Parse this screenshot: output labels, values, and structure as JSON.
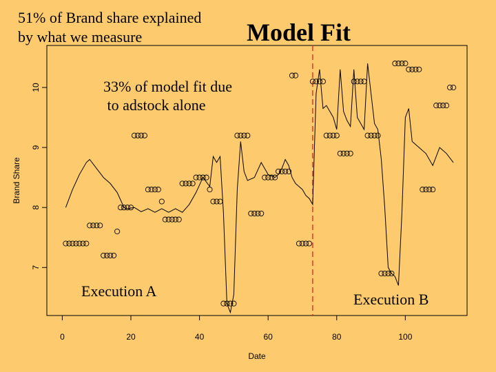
{
  "slide": {
    "headline": "51% of Brand share explained\nby what we measure",
    "title": "Model Fit",
    "note": "33% of model fit due\n to adstock alone",
    "execution_a": "Execution A",
    "execution_b": "Execution B"
  },
  "chart_data": {
    "type": "scatter",
    "title": "Model Fit",
    "xlabel": "Date",
    "ylabel": "Brand Share",
    "xlim": [
      -4.5,
      118
    ],
    "ylim": [
      6.2,
      10.7
    ],
    "xticks": [
      0,
      20,
      40,
      60,
      80,
      100
    ],
    "yticks": [
      7,
      8,
      9,
      10
    ],
    "grid": false,
    "legend": "none",
    "colors": {
      "points": "#000000",
      "fit_line": "#000000",
      "divider": "#E02020"
    },
    "divider_x": 73,
    "series": [
      {
        "type": "points",
        "x": [
          1,
          2,
          3,
          4,
          5,
          6,
          7,
          8,
          9,
          10,
          11,
          12,
          13,
          14,
          15,
          16,
          17,
          18,
          19,
          20,
          21,
          22,
          23,
          24,
          25,
          26,
          27,
          28,
          29,
          30,
          31,
          32,
          33,
          34,
          35,
          36,
          37,
          38,
          39,
          40,
          41,
          42,
          43,
          44,
          45,
          46,
          47,
          48,
          49,
          50,
          51,
          52,
          53,
          54,
          55,
          56,
          57,
          58,
          59,
          60,
          61,
          62,
          63,
          64,
          65,
          66,
          67,
          68,
          69,
          70,
          71,
          72,
          73,
          74,
          75,
          76,
          77,
          78,
          79,
          80,
          81,
          82,
          83,
          84,
          85,
          86,
          87,
          88,
          89,
          90,
          91,
          92,
          93,
          94,
          95,
          96,
          97,
          98,
          99,
          100,
          101,
          102,
          103,
          104,
          105,
          106,
          107,
          108,
          109,
          110,
          111,
          112,
          113,
          114
        ],
        "y": [
          7.4,
          7.4,
          7.4,
          7.4,
          7.4,
          7.4,
          7.4,
          7.7,
          7.7,
          7.7,
          7.7,
          7.2,
          7.2,
          7.2,
          7.2,
          7.6,
          8.0,
          8.0,
          8.0,
          8.0,
          9.2,
          9.2,
          9.2,
          9.2,
          8.3,
          8.3,
          8.3,
          8.3,
          8.1,
          7.8,
          7.8,
          7.8,
          7.8,
          7.8,
          8.4,
          8.4,
          8.4,
          8.4,
          8.5,
          8.5,
          8.5,
          8.5,
          8.3,
          8.1,
          8.1,
          8.1,
          6.4,
          6.4,
          6.4,
          6.4,
          9.2,
          9.2,
          9.2,
          9.2,
          7.9,
          7.9,
          7.9,
          7.9,
          8.5,
          8.5,
          8.5,
          8.5,
          8.6,
          8.6,
          8.6,
          8.6,
          10.2,
          10.2,
          7.4,
          7.4,
          7.4,
          7.4,
          10.1,
          10.1,
          10.1,
          10.1,
          9.2,
          9.2,
          9.2,
          9.2,
          8.9,
          8.9,
          8.9,
          8.9,
          10.1,
          10.1,
          10.1,
          10.1,
          9.2,
          9.2,
          9.2,
          9.2,
          6.9,
          6.9,
          6.9,
          6.9,
          10.4,
          10.4,
          10.4,
          10.4,
          10.3,
          10.3,
          10.3,
          10.3,
          8.3,
          8.3,
          8.3,
          8.3,
          9.7,
          9.7,
          9.7,
          9.7,
          10.0,
          10.0
        ]
      },
      {
        "type": "line",
        "x": [
          1,
          3,
          5,
          7,
          8,
          10,
          12,
          14,
          16,
          18,
          19,
          21,
          23,
          25,
          27,
          29,
          31,
          33,
          35,
          37,
          39,
          41,
          43,
          44,
          45,
          46,
          47,
          48,
          49,
          50,
          51,
          52,
          53,
          54,
          56,
          58,
          60,
          62,
          63,
          64,
          65,
          66,
          67,
          68,
          69,
          70,
          71,
          72,
          73,
          74,
          75,
          76,
          77,
          78,
          79,
          80,
          81,
          82,
          83,
          84,
          85,
          86,
          87,
          88,
          89,
          90,
          91,
          92,
          93,
          94,
          95,
          96,
          97,
          98,
          99,
          100,
          101,
          102,
          104,
          106,
          108,
          110,
          112,
          114
        ],
        "y": [
          8.0,
          8.3,
          8.55,
          8.75,
          8.8,
          8.65,
          8.5,
          8.4,
          8.25,
          8.0,
          7.98,
          8.0,
          7.93,
          7.98,
          7.92,
          7.98,
          7.92,
          7.98,
          7.92,
          8.05,
          8.25,
          8.5,
          8.35,
          8.85,
          8.75,
          8.85,
          7.9,
          6.4,
          6.25,
          6.55,
          8.3,
          9.1,
          8.6,
          8.45,
          8.5,
          8.75,
          8.55,
          8.5,
          8.55,
          8.65,
          8.8,
          8.7,
          8.5,
          8.4,
          8.35,
          8.3,
          8.2,
          8.15,
          8.05,
          9.9,
          10.3,
          9.65,
          9.7,
          9.6,
          9.5,
          9.3,
          10.3,
          9.6,
          9.45,
          9.35,
          10.3,
          9.5,
          9.4,
          9.3,
          10.4,
          9.9,
          9.4,
          9.3,
          8.8,
          8.0,
          7.0,
          6.9,
          6.85,
          6.7,
          7.9,
          9.5,
          9.65,
          9.1,
          9.0,
          8.9,
          8.7,
          9.0,
          8.9,
          8.75
        ]
      }
    ]
  }
}
